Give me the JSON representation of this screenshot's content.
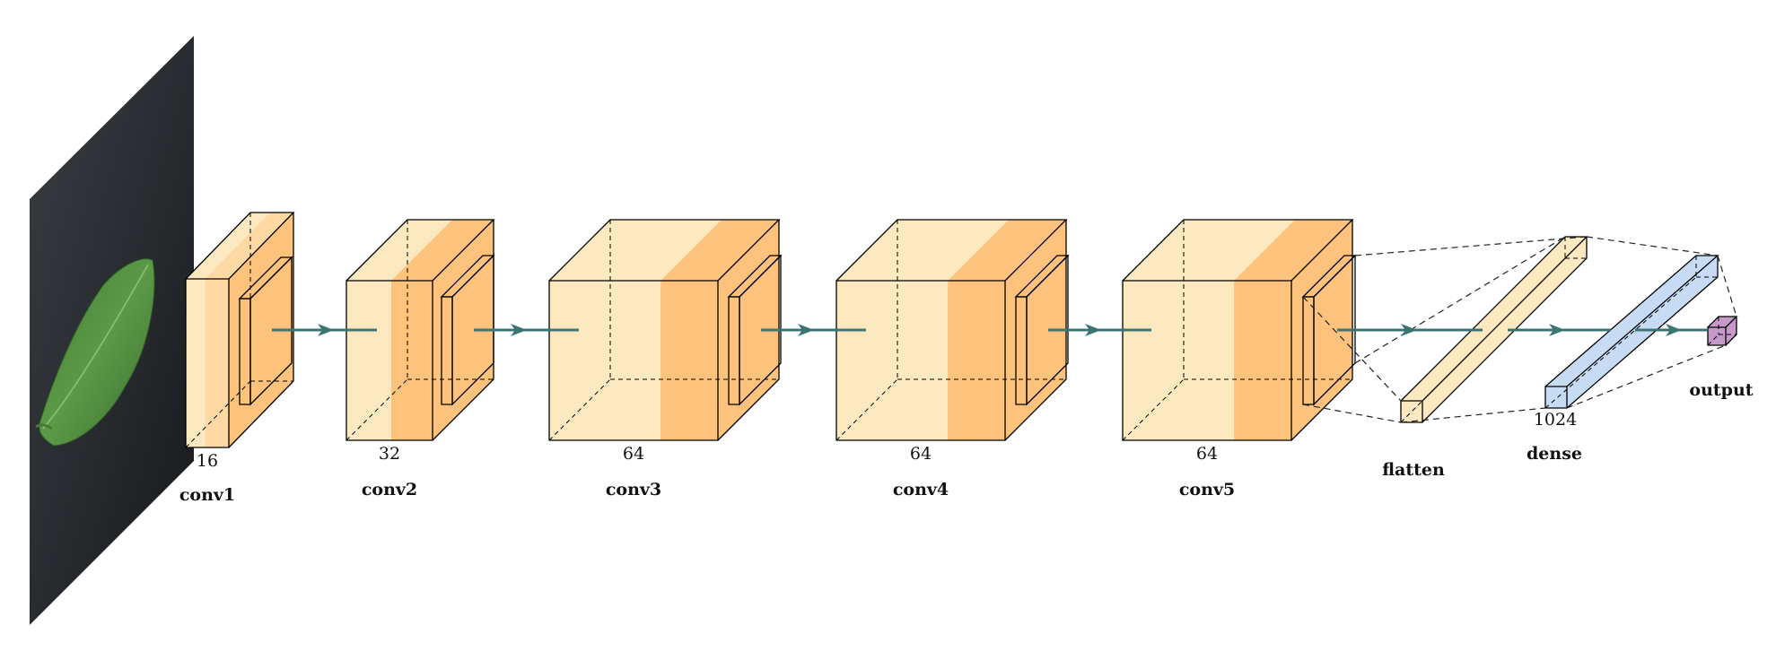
{
  "colors": {
    "conv_light": "#fde9c0",
    "conv_mid": "#fdc27c",
    "relu": "#e2603a",
    "dense": "#c7dcf4",
    "output": "#c59ac9",
    "arrow": "#3c7474",
    "input_bg": "#262a2e",
    "leaf": "#4d8c3c"
  },
  "layers": [
    {
      "id": "conv1",
      "name": "conv1",
      "dim": "16"
    },
    {
      "id": "conv2",
      "name": "conv2",
      "dim": "32"
    },
    {
      "id": "conv3",
      "name": "conv3",
      "dim": "64"
    },
    {
      "id": "conv4",
      "name": "conv4",
      "dim": "64"
    },
    {
      "id": "conv5",
      "name": "conv5",
      "dim": "64"
    },
    {
      "id": "flatten",
      "name": "flatten",
      "dim": ""
    },
    {
      "id": "dense",
      "name": "dense",
      "dim": "1024"
    },
    {
      "id": "output",
      "name": "output",
      "dim": ""
    }
  ],
  "input": {
    "icon": "leaf-image-icon"
  }
}
